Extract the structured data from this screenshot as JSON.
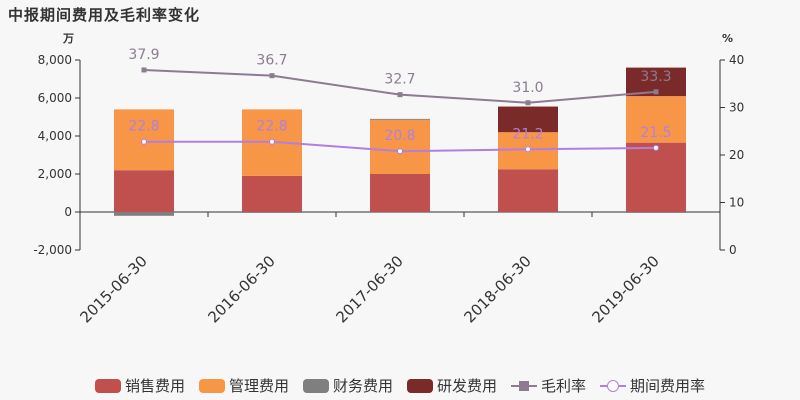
{
  "title": "中报期间费用及毛利率变化",
  "left_unit": "万",
  "right_unit": "%",
  "chart_data": {
    "type": "bar",
    "stacked": true,
    "categories": [
      "2015-06-30",
      "2016-06-30",
      "2017-06-30",
      "2018-06-30",
      "2019-06-30"
    ],
    "series": [
      {
        "name": "销售费用",
        "kind": "bar",
        "axis": "left",
        "color": "#c0504d",
        "values": [
          2200,
          1900,
          2000,
          2250,
          3650
        ]
      },
      {
        "name": "管理费用",
        "kind": "bar",
        "axis": "left",
        "color": "#f79646",
        "values": [
          3200,
          3500,
          2850,
          1950,
          2450
        ]
      },
      {
        "name": "财务费用",
        "kind": "bar",
        "axis": "left",
        "color": "#7f7f7f",
        "values": [
          -200,
          -50,
          50,
          -30,
          -50
        ]
      },
      {
        "name": "研发费用",
        "kind": "bar",
        "axis": "left",
        "color": "#7b2a2a",
        "values": [
          0,
          0,
          0,
          1350,
          1500
        ]
      },
      {
        "name": "毛利率",
        "kind": "line",
        "axis": "right",
        "color": "#8c7b91",
        "marker": "square",
        "values": [
          37.9,
          36.7,
          32.7,
          31.0,
          33.3
        ],
        "labels": [
          "37.9",
          "36.7",
          "32.7",
          "31.0",
          "33.3"
        ]
      },
      {
        "name": "期间费用率",
        "kind": "line",
        "axis": "right",
        "color": "#b07fe0",
        "marker": "circle",
        "values": [
          22.8,
          22.8,
          20.8,
          21.2,
          21.5
        ],
        "labels": [
          "22.8",
          "22.8",
          "20.8",
          "21.2",
          "21.5"
        ]
      }
    ],
    "ylim_left": [
      -2000,
      8000
    ],
    "yticks_left": [
      "-2,000",
      "0",
      "2,000",
      "4,000",
      "6,000",
      "8,000"
    ],
    "ylim_right": [
      0,
      40
    ],
    "yticks_right": [
      "0",
      "10",
      "20",
      "30",
      "40"
    ],
    "legend_position": "bottom"
  }
}
